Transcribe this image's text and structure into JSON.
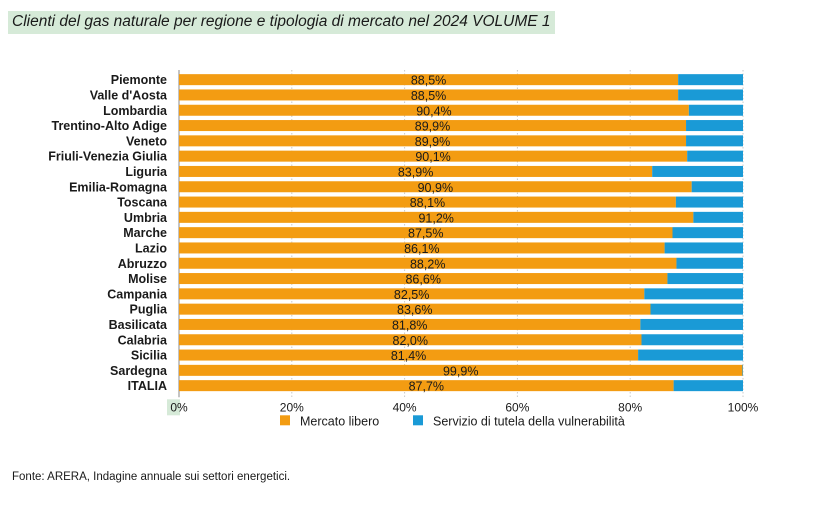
{
  "chart_data": {
    "type": "bar",
    "orientation": "horizontal",
    "stacked": true,
    "title": "Clienti del gas naturale per regione e tipologia di mercato nel 2024 VOLUME 1",
    "categories": [
      "Piemonte",
      "Valle d'Aosta",
      "Lombardia",
      "Trentino-Alto Adige",
      "Veneto",
      "Friuli-Venezia Giulia",
      "Liguria",
      "Emilia-Romagna",
      "Toscana",
      "Umbria",
      "Marche",
      "Lazio",
      "Abruzzo",
      "Molise",
      "Campania",
      "Puglia",
      "Basilicata",
      "Calabria",
      "Sicilia",
      "Sardegna",
      "ITALIA"
    ],
    "series": [
      {
        "name": "Mercato libero",
        "color": "#f39c12",
        "values": [
          88.5,
          88.5,
          90.4,
          89.9,
          89.9,
          90.1,
          83.9,
          90.9,
          88.1,
          91.2,
          87.5,
          86.1,
          88.2,
          86.6,
          82.5,
          83.6,
          81.8,
          82.0,
          81.4,
          99.9,
          87.7
        ],
        "data_labels": [
          "88,5%",
          "88,5%",
          "90,4%",
          "89,9%",
          "89,9%",
          "90,1%",
          "83,9%",
          "90,9%",
          "88,1%",
          "91,2%",
          "87,5%",
          "86,1%",
          "88,2%",
          "86,6%",
          "82,5%",
          "83,6%",
          "81,8%",
          "82,0%",
          "81,4%",
          "99,9%",
          "87,7%"
        ]
      },
      {
        "name": "Servizio di tutela della vulnerabilità",
        "color": "#1a9ad6",
        "values": [
          11.5,
          11.5,
          9.6,
          10.1,
          10.1,
          9.9,
          16.1,
          9.1,
          11.9,
          8.8,
          12.5,
          13.9,
          11.8,
          13.4,
          17.5,
          16.4,
          18.2,
          18.0,
          18.6,
          0.1,
          12.3
        ]
      }
    ],
    "xlim": [
      0,
      100
    ],
    "xticks": [
      "0%",
      "20%",
      "40%",
      "60%",
      "80%",
      "100%"
    ],
    "xlabel": "",
    "ylabel": "",
    "grid": true,
    "legend": "bottom"
  },
  "source": "Fonte: ARERA, Indagine annuale sui settori energetici."
}
